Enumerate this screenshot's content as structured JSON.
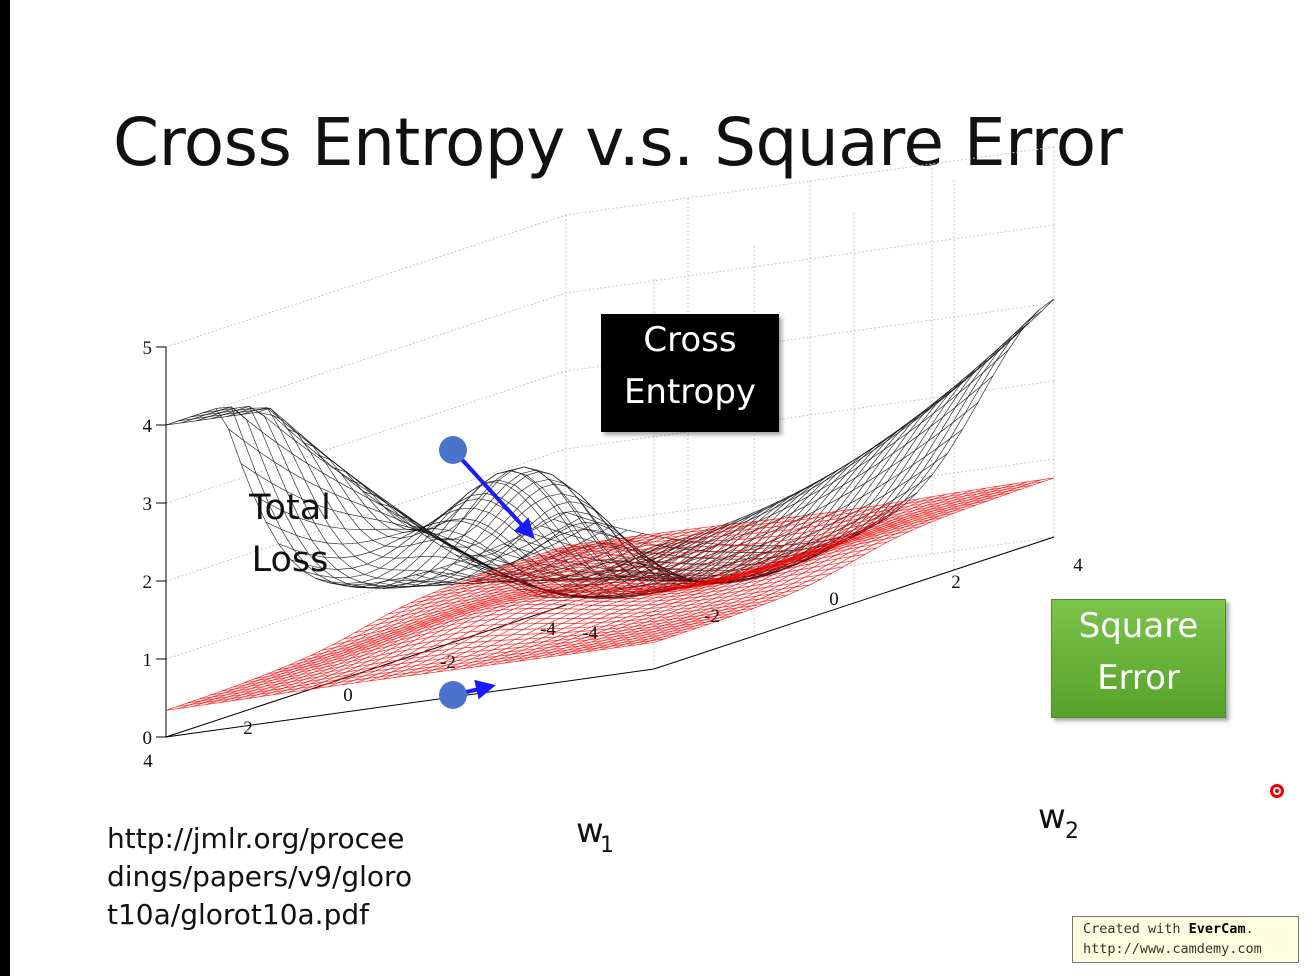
{
  "slide": {
    "title": "Cross Entropy v.s. Square Error",
    "y_label_line1": "Total",
    "y_label_line2": "Loss",
    "reference_url_lines": [
      "http://jmlr.org/procee",
      "dings/papers/v9/gloro",
      "t10a/glorot10a.pdf"
    ]
  },
  "badges": {
    "cross_entropy": [
      "Cross",
      "Entropy"
    ],
    "square_error": [
      "Square",
      "Error"
    ]
  },
  "watermark": {
    "line1_prefix": "Created with ",
    "line1_brand": "EverCam",
    "line1_suffix": ".",
    "line2": "http://www.camdemy.com"
  },
  "chart_data": {
    "type": "surface3d",
    "title": "",
    "zlabel": "Total Loss",
    "xlabel": "w",
    "xlabel_sub": "1",
    "ylabel": "w",
    "ylabel_sub": "2",
    "z_ticks": [
      "0",
      "1",
      "2",
      "3",
      "4",
      "5"
    ],
    "w1_ticks": [
      "4",
      "2",
      "0",
      "-2",
      "-4"
    ],
    "w2_ticks": [
      "-4",
      "-2",
      "0",
      "2",
      "4"
    ],
    "zlim": [
      0,
      5
    ],
    "w1_range": [
      -4,
      4
    ],
    "w2_range": [
      -4,
      4
    ],
    "grid": true,
    "series": [
      {
        "name": "Cross Entropy",
        "color": "#111111",
        "z_range": [
          0.1,
          4.0
        ]
      },
      {
        "name": "Square Error",
        "color": "#ff0000",
        "z_range": [
          0.0,
          1.0
        ]
      }
    ],
    "gradient_markers": [
      {
        "surface": "Cross Entropy",
        "color": "#4a74c9",
        "arrow": "long"
      },
      {
        "surface": "Square Error",
        "color": "#4a74c9",
        "arrow": "short"
      }
    ]
  }
}
